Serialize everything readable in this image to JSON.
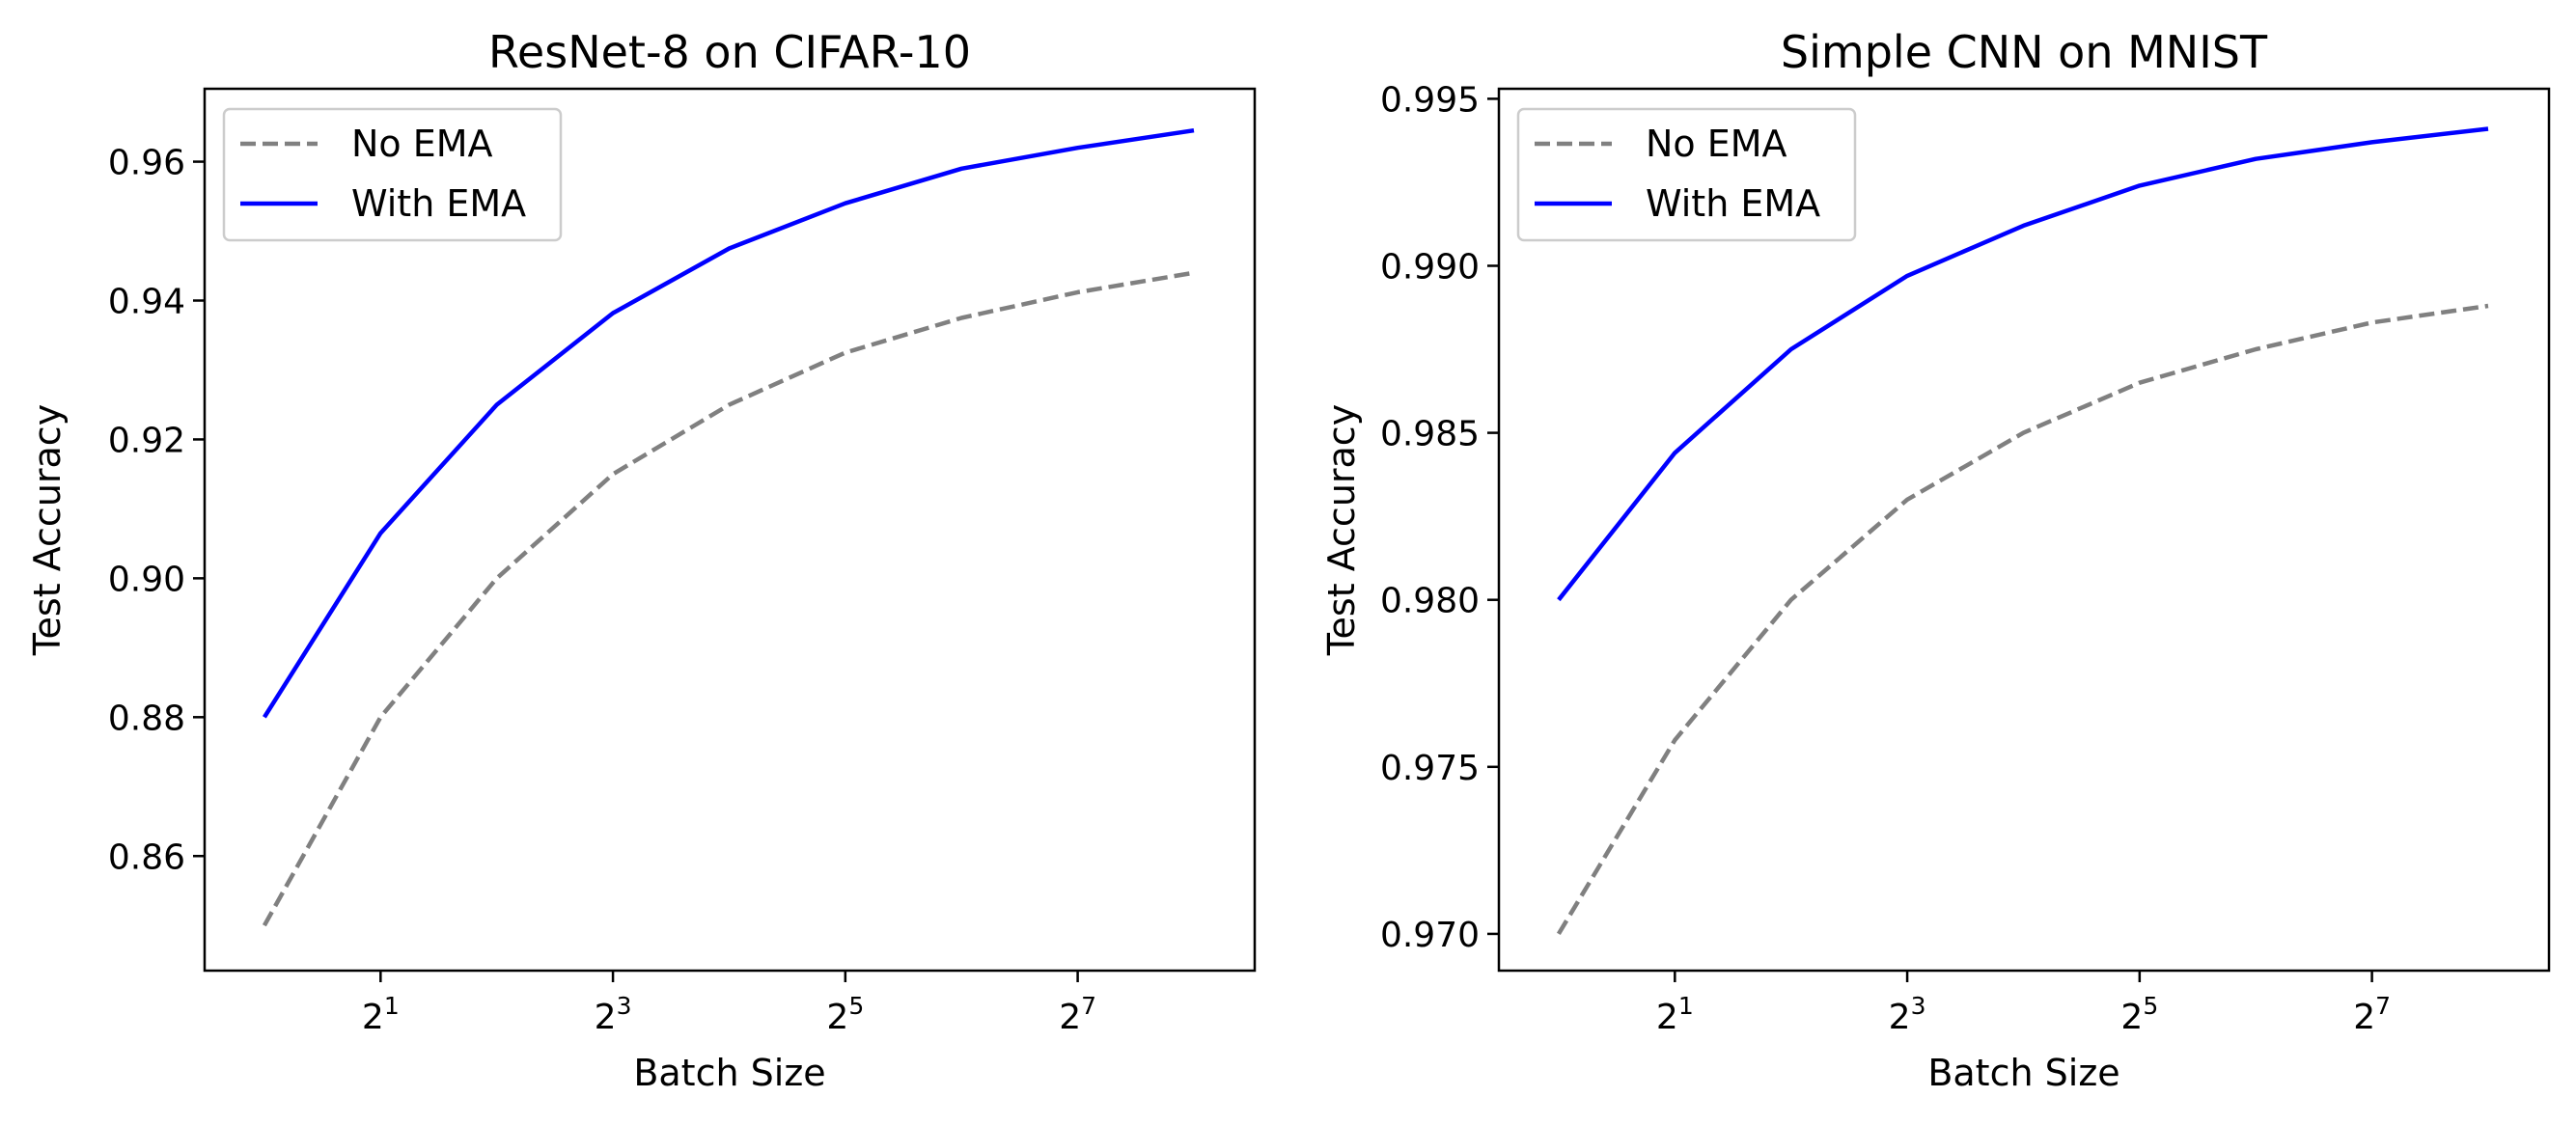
{
  "chart_data": [
    {
      "type": "line",
      "title": "ResNet-8 on CIFAR-10",
      "xlabel": "Batch Size",
      "ylabel": "Test Accuracy",
      "x_scale": "log2",
      "x": [
        1,
        2,
        4,
        8,
        16,
        32,
        64,
        128,
        256
      ],
      "xticks": [
        2,
        8,
        32,
        128
      ],
      "xtick_labels": [
        {
          "base": "2",
          "exp": "1"
        },
        {
          "base": "2",
          "exp": "3"
        },
        {
          "base": "2",
          "exp": "5"
        },
        {
          "base": "2",
          "exp": "7"
        }
      ],
      "xlim": [
        0.7,
        368
      ],
      "ylim": [
        0.8435,
        0.9705
      ],
      "yticks": [
        0.86,
        0.88,
        0.9,
        0.92,
        0.94,
        0.96
      ],
      "ytick_labels": [
        "0.86",
        "0.88",
        "0.90",
        "0.92",
        "0.94",
        "0.96"
      ],
      "legend_position": "top-left",
      "grid": false,
      "series": [
        {
          "name": "No EMA",
          "style": "dashed",
          "color": "#808080",
          "values": [
            0.85,
            0.88,
            0.9,
            0.915,
            0.925,
            0.9325,
            0.9375,
            0.9412,
            0.944
          ]
        },
        {
          "name": "With EMA",
          "style": "solid",
          "color": "#0000ff",
          "values": [
            0.88,
            0.9065,
            0.925,
            0.9382,
            0.9475,
            0.954,
            0.959,
            0.962,
            0.9645
          ]
        }
      ]
    },
    {
      "type": "line",
      "title": "Simple CNN on MNIST",
      "xlabel": "Batch Size",
      "ylabel": "Test Accuracy",
      "x_scale": "log2",
      "x": [
        1,
        2,
        4,
        8,
        16,
        32,
        64,
        128,
        256
      ],
      "xticks": [
        2,
        8,
        32,
        128
      ],
      "xtick_labels": [
        {
          "base": "2",
          "exp": "1"
        },
        {
          "base": "2",
          "exp": "3"
        },
        {
          "base": "2",
          "exp": "5"
        },
        {
          "base": "2",
          "exp": "7"
        }
      ],
      "xlim": [
        0.7,
        368
      ],
      "ylim": [
        0.9689,
        0.9953
      ],
      "yticks": [
        0.97,
        0.975,
        0.98,
        0.985,
        0.99,
        0.995
      ],
      "ytick_labels": [
        "0.970",
        "0.975",
        "0.980",
        "0.985",
        "0.990",
        "0.995"
      ],
      "legend_position": "top-left",
      "grid": false,
      "series": [
        {
          "name": "No EMA",
          "style": "dashed",
          "color": "#808080",
          "values": [
            0.97,
            0.9758,
            0.98,
            0.983,
            0.985,
            0.9865,
            0.9875,
            0.9883,
            0.9888
          ]
        },
        {
          "name": "With EMA",
          "style": "solid",
          "color": "#0000ff",
          "values": [
            0.98,
            0.9844,
            0.9875,
            0.9897,
            0.9912,
            0.9924,
            0.9932,
            0.9937,
            0.9941
          ]
        }
      ]
    }
  ]
}
